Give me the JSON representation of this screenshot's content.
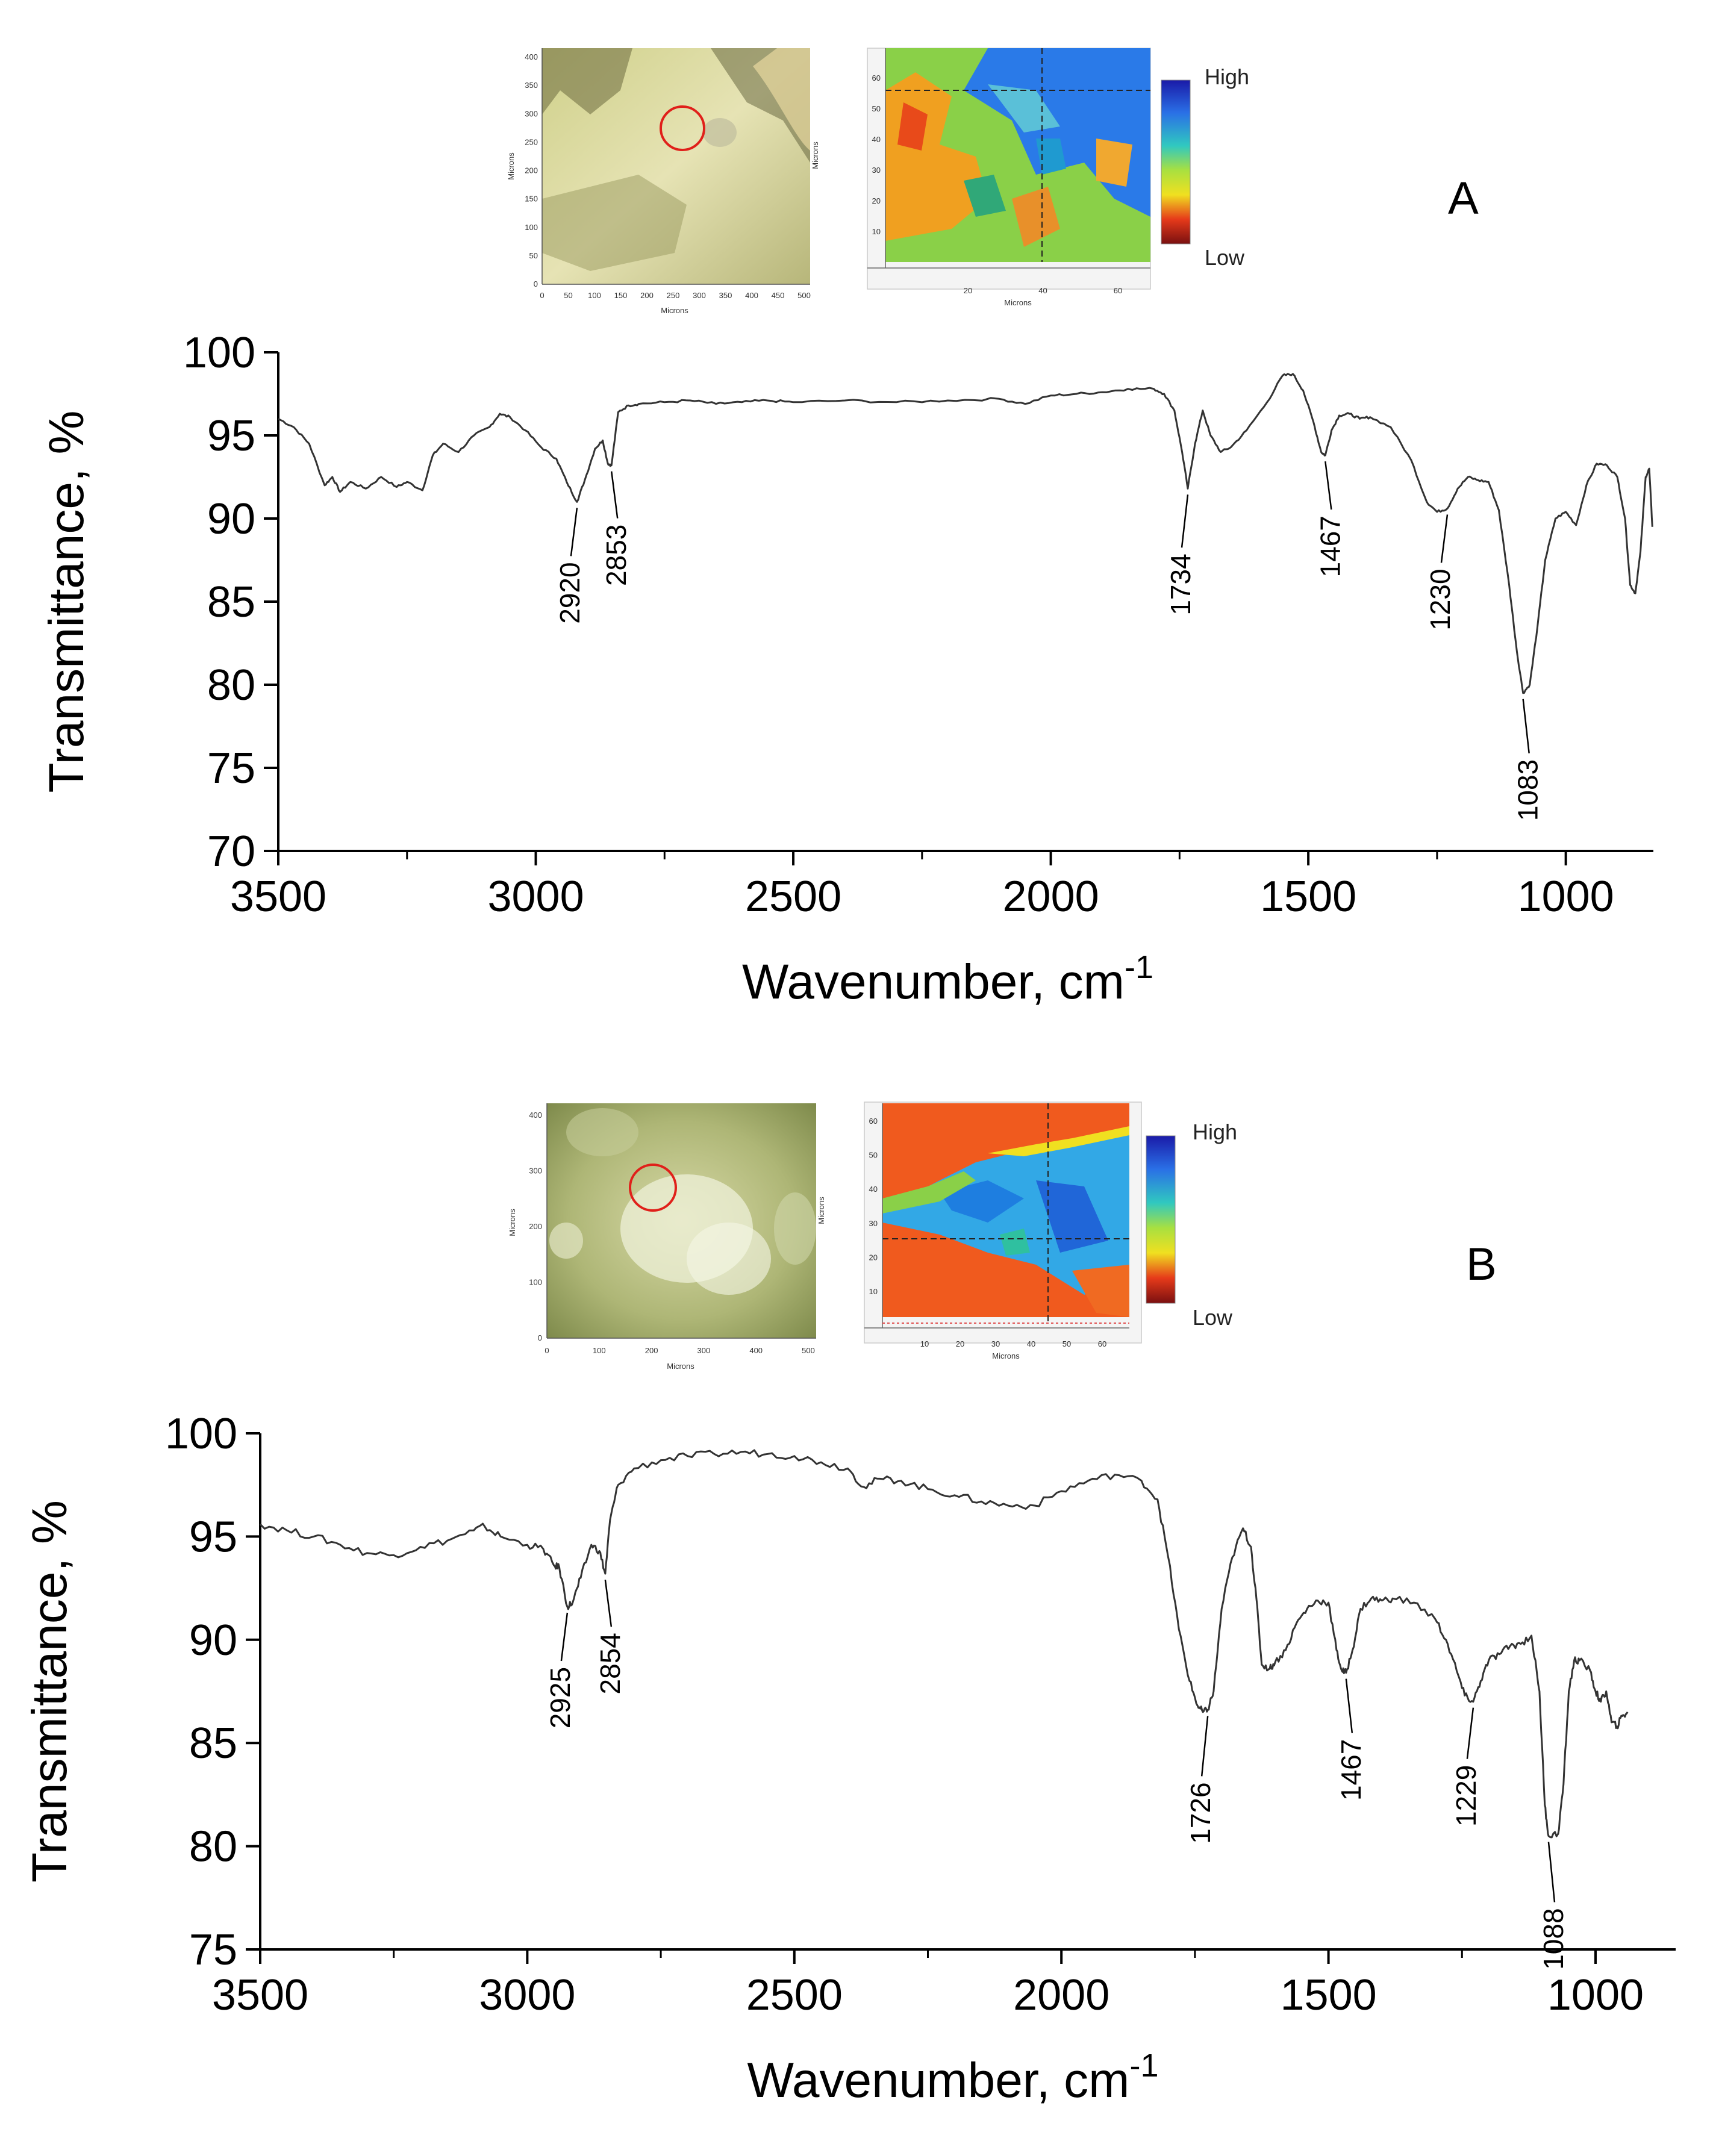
{
  "chart_data": [
    {
      "type": "line",
      "panel_label": "A",
      "xlabel": "Wavenumber, cm",
      "xlabel_sup": "-1",
      "ylabel": "Transmittance, %",
      "xlim": [
        3500,
        830
      ],
      "ylim": [
        70,
        100
      ],
      "xticks": [
        3500,
        3000,
        2500,
        2000,
        1500,
        1000
      ],
      "yticks": [
        70,
        75,
        80,
        85,
        90,
        95,
        100
      ],
      "series": [
        {
          "name": "spectrum A",
          "x": [
            3500,
            3470,
            3440,
            3410,
            3395,
            3380,
            3360,
            3330,
            3300,
            3270,
            3250,
            3220,
            3200,
            3180,
            3150,
            3120,
            3090,
            3070,
            3050,
            3020,
            2990,
            2960,
            2940,
            2920,
            2905,
            2885,
            2870,
            2860,
            2853,
            2840,
            2820,
            2800,
            2750,
            2700,
            2650,
            2600,
            2550,
            2500,
            2400,
            2300,
            2200,
            2100,
            2050,
            2000,
            1950,
            1900,
            1850,
            1800,
            1780,
            1760,
            1745,
            1734,
            1720,
            1705,
            1690,
            1670,
            1650,
            1620,
            1580,
            1550,
            1530,
            1510,
            1490,
            1475,
            1467,
            1455,
            1440,
            1420,
            1400,
            1380,
            1340,
            1300,
            1270,
            1250,
            1230,
            1210,
            1190,
            1170,
            1150,
            1130,
            1110,
            1095,
            1083,
            1070,
            1055,
            1040,
            1020,
            1000,
            980,
            960,
            940,
            920,
            900,
            885,
            875,
            865,
            855,
            845,
            838,
            832
          ],
          "y": [
            96,
            95.5,
            94.5,
            92,
            92.5,
            91.6,
            92.2,
            91.8,
            92.5,
            91.9,
            92.2,
            91.7,
            93.8,
            94.5,
            94,
            95,
            95.5,
            96.3,
            96.1,
            95.3,
            94.3,
            93.6,
            92.2,
            91,
            92.3,
            94.2,
            94.7,
            93.3,
            93.2,
            96.4,
            96.8,
            96.9,
            97,
            97.1,
            96.9,
            97,
            97.1,
            97,
            97.1,
            97,
            97.1,
            97.2,
            96.9,
            97.4,
            97.5,
            97.6,
            97.8,
            97.8,
            97.5,
            96.5,
            94,
            91.8,
            94.5,
            96.5,
            95,
            94,
            94.3,
            95.3,
            97,
            98.6,
            98.7,
            97.7,
            95.8,
            94,
            93.8,
            95.3,
            96.2,
            96.3,
            96,
            96.1,
            95.5,
            93.5,
            91,
            90.4,
            90.6,
            91.8,
            92.5,
            92.3,
            92.2,
            90.5,
            86,
            82,
            79.5,
            80,
            83.5,
            87.5,
            90,
            90.4,
            89.6,
            92,
            93.3,
            93.2,
            92.5,
            90,
            86,
            85.5,
            88,
            92.5,
            93,
            89.5
          ]
        }
      ],
      "peak_labels": [
        {
          "text": "2920",
          "x": 2920,
          "y": 91.0
        },
        {
          "text": "2853",
          "x": 2853,
          "y": 93.2
        },
        {
          "text": "1734",
          "x": 1734,
          "y": 91.8
        },
        {
          "text": "1467",
          "x": 1467,
          "y": 93.8
        },
        {
          "text": "1230",
          "x": 1230,
          "y": 90.6
        },
        {
          "text": "1083",
          "x": 1083,
          "y": 79.5
        }
      ],
      "inset_micrograph": {
        "axis_label": "Microns",
        "xticks": [
          "0",
          "50",
          "100",
          "150",
          "200",
          "250",
          "300",
          "350",
          "400",
          "450",
          "500"
        ],
        "yticks": [
          "0",
          "50",
          "100",
          "150",
          "200",
          "250",
          "300",
          "350",
          "400"
        ]
      },
      "inset_map": {
        "axis_label": "Microns",
        "xticks": [
          "20",
          "40",
          "60"
        ],
        "yticks": [
          "10",
          "20",
          "30",
          "40",
          "50",
          "60"
        ],
        "legend_high": "High",
        "legend_low": "Low"
      }
    },
    {
      "type": "line",
      "panel_label": "B",
      "xlabel": "Wavenumber, cm",
      "xlabel_sup": "-1",
      "ylabel": "Transmittance, %",
      "xlim": [
        3500,
        850
      ],
      "ylim": [
        75,
        100
      ],
      "xticks": [
        3500,
        3000,
        2500,
        2000,
        1500,
        1000
      ],
      "yticks": [
        75,
        80,
        85,
        90,
        95,
        100
      ],
      "series": [
        {
          "name": "spectrum B",
          "x": [
            3500,
            3450,
            3400,
            3350,
            3300,
            3250,
            3200,
            3150,
            3100,
            3080,
            3050,
            3000,
            2970,
            2950,
            2940,
            2925,
            2915,
            2900,
            2880,
            2865,
            2854,
            2845,
            2830,
            2800,
            2750,
            2700,
            2650,
            2600,
            2550,
            2500,
            2450,
            2400,
            2370,
            2340,
            2300,
            2250,
            2200,
            2150,
            2100,
            2050,
            2000,
            1950,
            1900,
            1850,
            1820,
            1800,
            1780,
            1760,
            1745,
            1735,
            1726,
            1715,
            1700,
            1680,
            1660,
            1645,
            1635,
            1625,
            1610,
            1600,
            1580,
            1560,
            1540,
            1520,
            1500,
            1485,
            1475,
            1467,
            1455,
            1440,
            1420,
            1400,
            1380,
            1340,
            1300,
            1280,
            1260,
            1245,
            1229,
            1215,
            1200,
            1180,
            1160,
            1140,
            1120,
            1105,
            1095,
            1088,
            1070,
            1060,
            1050,
            1040,
            1030,
            1010,
            1000,
            990,
            980,
            970,
            960,
            950,
            940
          ],
          "y": [
            95.6,
            95.3,
            95,
            94.6,
            94.2,
            94.1,
            94.5,
            94.8,
            95.3,
            95.5,
            95,
            94.6,
            94.4,
            93.6,
            93.5,
            91.6,
            91.8,
            93,
            94.6,
            94.3,
            93.2,
            95.8,
            97.5,
            98.3,
            98.7,
            98.9,
            99,
            99.1,
            99,
            98.9,
            98.6,
            98.3,
            97.4,
            97.8,
            97.7,
            97.3,
            97,
            96.7,
            96.5,
            96.5,
            97.2,
            97.7,
            98,
            97.7,
            96.8,
            94,
            90.5,
            88,
            86.8,
            86.5,
            86.6,
            87.5,
            91.5,
            94,
            95.4,
            94.5,
            92,
            88.8,
            88.6,
            88.9,
            89.5,
            90.8,
            91.5,
            91.9,
            91.8,
            89.5,
            88.5,
            88.4,
            89.5,
            91.5,
            92,
            91.9,
            92,
            91.8,
            91,
            90,
            88.5,
            87.3,
            87,
            88,
            89,
            89.3,
            89.7,
            89.8,
            90.2,
            87.5,
            82,
            80.5,
            80.6,
            83,
            87.5,
            89,
            89,
            88.5,
            87.5,
            87,
            87.5,
            86,
            85.8,
            86.3,
            86.5
          ]
        }
      ],
      "peak_labels": [
        {
          "text": "2925",
          "x": 2925,
          "y": 91.6
        },
        {
          "text": "2854",
          "x": 2854,
          "y": 93.2
        },
        {
          "text": "1726",
          "x": 1726,
          "y": 86.6
        },
        {
          "text": "1467",
          "x": 1467,
          "y": 88.4
        },
        {
          "text": "1229",
          "x": 1229,
          "y": 87.0
        },
        {
          "text": "1088",
          "x": 1088,
          "y": 80.5
        }
      ],
      "inset_micrograph": {
        "axis_label": "Microns",
        "xticks": [
          "0",
          "100",
          "200",
          "300",
          "400",
          "500"
        ],
        "yticks": [
          "0",
          "100",
          "200",
          "300",
          "400"
        ]
      },
      "inset_map": {
        "axis_label": "Microns",
        "xticks": [
          "10",
          "20",
          "30",
          "40",
          "50",
          "60"
        ],
        "yticks": [
          "10",
          "20",
          "30",
          "40",
          "50",
          "60"
        ],
        "legend_high": "High",
        "legend_low": "Low"
      }
    }
  ]
}
